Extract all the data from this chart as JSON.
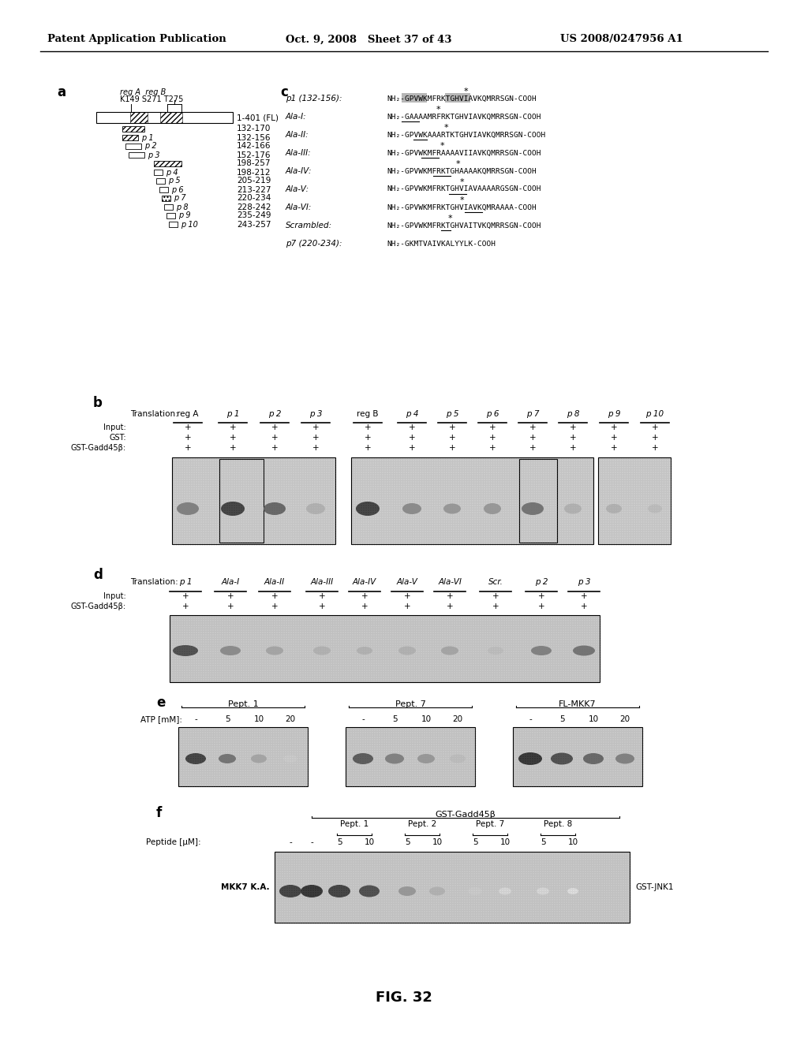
{
  "header_left": "Patent Application Publication",
  "header_mid": "Oct. 9, 2008   Sheet 37 of 43",
  "header_right": "US 2008/0247956 A1",
  "figure_label": "FIG. 32",
  "background": "#ffffff",
  "gel_bg": "#c8c8c8",
  "gel_border": "#555555"
}
